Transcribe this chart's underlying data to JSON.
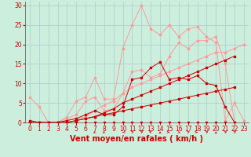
{
  "xlabel": "Vent moyen/en rafales ( km/h )",
  "bg_color": "#cceedd",
  "grid_color": "#aacccc",
  "xlim": [
    -0.5,
    23.5
  ],
  "ylim": [
    0,
    31
  ],
  "yticks": [
    0,
    5,
    10,
    15,
    20,
    25,
    30
  ],
  "xticks": [
    0,
    1,
    2,
    3,
    4,
    5,
    6,
    7,
    8,
    9,
    10,
    11,
    12,
    13,
    14,
    15,
    16,
    17,
    18,
    19,
    20,
    21,
    22,
    23
  ],
  "lines_dark": [
    {
      "x": [
        0,
        1,
        2,
        3,
        4,
        5,
        6,
        7,
        8,
        9,
        10,
        11,
        12,
        13,
        14,
        15,
        16,
        17,
        18,
        19,
        20,
        21,
        22
      ],
      "y": [
        0,
        0,
        0,
        0,
        0,
        0,
        0,
        0,
        0,
        0,
        0,
        0,
        0,
        0,
        0,
        0,
        0,
        0,
        0,
        0,
        0,
        0,
        0
      ]
    },
    {
      "x": [
        0,
        1,
        2,
        3,
        4,
        5,
        6,
        7,
        8,
        9,
        10,
        11,
        12,
        13,
        14,
        15,
        16,
        17,
        18,
        19,
        20,
        21,
        22
      ],
      "y": [
        0,
        0,
        0,
        0,
        0,
        0.5,
        1,
        1.5,
        2,
        2.5,
        3,
        3.5,
        4,
        4.5,
        5,
        5.5,
        6,
        6.5,
        7,
        7.5,
        8,
        8.5,
        9
      ]
    },
    {
      "x": [
        0,
        1,
        2,
        3,
        4,
        5,
        6,
        7,
        8,
        9,
        10,
        11,
        12,
        13,
        14,
        15,
        16,
        17,
        18,
        19,
        20,
        21,
        22
      ],
      "y": [
        0,
        0,
        0,
        0,
        0,
        0.5,
        1,
        1.5,
        2.5,
        3.5,
        5,
        6,
        7,
        8,
        9,
        10,
        11,
        12,
        13,
        14,
        15,
        16,
        17
      ]
    },
    {
      "x": [
        0,
        1,
        2,
        3,
        4,
        5,
        6,
        7,
        8,
        9,
        10,
        11,
        12,
        13,
        14,
        15,
        16,
        17,
        18,
        19,
        20,
        21,
        22
      ],
      "y": [
        0.5,
        0,
        0,
        0,
        0.5,
        1,
        2,
        3,
        2,
        2,
        4,
        11,
        11.5,
        14,
        15.5,
        11,
        11.5,
        11,
        12,
        10,
        9.5,
        4,
        0
      ]
    }
  ],
  "lines_light": [
    {
      "x": [
        0,
        1,
        2,
        3,
        4,
        5,
        6,
        7,
        8,
        9,
        10,
        11,
        12,
        13,
        14,
        15,
        16,
        17,
        18,
        19,
        20,
        21,
        22,
        23
      ],
      "y": [
        6.5,
        4,
        0,
        0,
        1.5,
        5.5,
        6.5,
        11.5,
        6,
        6,
        19,
        25,
        30,
        24,
        22.5,
        25,
        22,
        24,
        24.5,
        22,
        20.5,
        0.5,
        5,
        0.5
      ]
    },
    {
      "x": [
        0,
        2,
        3,
        4,
        5,
        6,
        7,
        8,
        9,
        10,
        11,
        12,
        13,
        14,
        15,
        16,
        17,
        18,
        19,
        20,
        21,
        22
      ],
      "y": [
        0,
        0,
        0,
        1,
        2,
        5.5,
        6.5,
        3,
        3.5,
        7.5,
        13,
        13.5,
        11.5,
        12.5,
        17,
        20.5,
        19,
        21,
        21,
        22,
        15,
        0
      ]
    },
    {
      "x": [
        0,
        1,
        2,
        3,
        4,
        5,
        6,
        7,
        8,
        9,
        10,
        11,
        12,
        13,
        14,
        15,
        16,
        17,
        18,
        19,
        20,
        21,
        22,
        23
      ],
      "y": [
        0,
        0,
        0,
        0,
        0.5,
        1,
        1.5,
        3,
        4.5,
        5.5,
        7.5,
        9,
        10,
        11,
        12,
        13,
        14,
        15,
        16,
        17,
        18,
        18,
        19,
        20
      ]
    }
  ],
  "color_dark": "#cc0000",
  "color_light": "#ff9999",
  "marker_size": 1.8,
  "tick_color": "#cc0000",
  "label_color": "#cc0000",
  "xlabel_fontsize": 7,
  "tick_fontsize": 5.5
}
